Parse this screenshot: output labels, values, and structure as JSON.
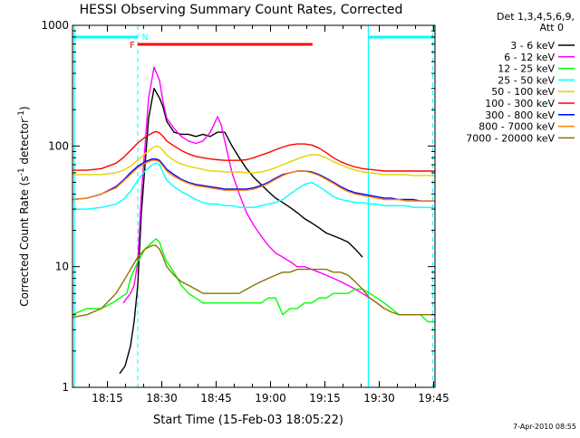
{
  "chart_data": {
    "type": "line",
    "title": "HESSI Observing Summary Count Rates, Corrected",
    "xlabel": "Start Time (15-Feb-03 18:05:22)",
    "ylabel_parts": [
      "Corrected Count Rate (s",
      "-1",
      " detector",
      "-1",
      ")"
    ],
    "x_unit": "minutes after 18:05:22",
    "x_range": [
      0,
      100
    ],
    "y_range": [
      1,
      1000
    ],
    "y_scale": "log",
    "x_tick_labels": [
      {
        "label": "18:15",
        "x": 9.63
      },
      {
        "label": "18:30",
        "x": 24.63
      },
      {
        "label": "18:45",
        "x": 39.63
      },
      {
        "label": "19:00",
        "x": 54.63
      },
      {
        "label": "19:15",
        "x": 69.63
      },
      {
        "label": "19:30",
        "x": 84.63
      },
      {
        "label": "19:45",
        "x": 99.63
      }
    ],
    "y_tick_labels": [
      {
        "label": "1",
        "y": 1
      },
      {
        "label": "10",
        "y": 10
      },
      {
        "label": "100",
        "y": 100
      },
      {
        "label": "1000",
        "y": 1000
      }
    ],
    "legend": {
      "placement": "top-right, outside plot",
      "header": [
        "Det 1,3,4,5,6,9,",
        "Att 0"
      ]
    },
    "series": [
      {
        "name": "3 - 6 keV",
        "color": "#000000",
        "x": [
          13,
          14.5,
          16,
          17,
          18,
          19,
          21,
          22.5,
          24,
          25,
          26,
          28,
          30,
          32,
          34,
          36,
          38,
          40,
          42,
          44,
          46,
          48,
          50,
          52,
          54,
          56,
          58,
          60,
          62,
          64,
          66,
          68,
          70,
          72,
          74,
          76,
          78,
          80
        ],
        "y": [
          1.3,
          1.5,
          2.2,
          3.5,
          7,
          28,
          170,
          300,
          250,
          210,
          160,
          130,
          125,
          125,
          120,
          125,
          120,
          130,
          130,
          100,
          80,
          65,
          55,
          48,
          42,
          37,
          34,
          31,
          28,
          25,
          23,
          21,
          19,
          18,
          17,
          16,
          14,
          12
        ]
      },
      {
        "name": "6 - 12 keV",
        "color": "#ff00ff",
        "x": [
          14,
          16,
          17,
          18,
          19,
          21,
          22.5,
          24,
          25,
          26,
          28,
          30,
          32,
          34,
          36,
          38,
          39,
          40,
          41,
          42,
          44,
          46,
          48,
          50,
          52,
          54,
          56,
          58,
          60,
          62,
          64,
          66,
          68,
          70,
          72,
          74,
          76,
          78,
          80,
          82,
          84,
          86
        ],
        "y": [
          5,
          6,
          7,
          11,
          40,
          250,
          450,
          350,
          230,
          170,
          140,
          120,
          110,
          105,
          110,
          130,
          150,
          175,
          150,
          110,
          60,
          40,
          28,
          22,
          18,
          15,
          13,
          12,
          11,
          10,
          10,
          9.5,
          9,
          8.5,
          8,
          7.5,
          7,
          6.5,
          6,
          5.5,
          5,
          4.5
        ]
      },
      {
        "name": "12 - 25 keV",
        "color": "#00ff00",
        "x": [
          0,
          4,
          8,
          11,
          13,
          15,
          16,
          18,
          20,
          22,
          23,
          24,
          25,
          26,
          28,
          30,
          32,
          34,
          36,
          38,
          40,
          42,
          44,
          46,
          48,
          50,
          52,
          54,
          56,
          58,
          60,
          62,
          64,
          66,
          68,
          70,
          72,
          74,
          76,
          78,
          80,
          82,
          84,
          86,
          88,
          90,
          92,
          94,
          96,
          98,
          100
        ],
        "y": [
          4,
          4.5,
          4.5,
          5,
          5.5,
          6,
          8,
          11,
          14,
          16,
          17,
          16,
          13,
          11,
          9,
          7,
          6,
          5.5,
          5,
          5,
          5,
          5,
          5,
          5,
          5,
          5,
          5,
          5.5,
          5.5,
          4,
          4.5,
          4.5,
          5,
          5,
          5.5,
          5.5,
          6,
          6,
          6,
          6.5,
          6.5,
          6,
          5.5,
          5,
          4.5,
          4,
          4,
          4,
          4,
          3.5,
          3.5
        ]
      },
      {
        "name": "25 - 50 keV",
        "color": "#00ffff",
        "x": [
          0,
          4,
          8,
          12,
          14,
          16,
          18,
          20,
          22,
          23,
          24,
          25,
          26,
          28,
          30,
          32,
          34,
          36,
          38,
          40,
          42,
          44,
          46,
          48,
          50,
          52,
          54,
          56,
          58,
          60,
          62,
          64,
          66,
          68,
          70,
          72,
          74,
          76,
          78,
          80,
          82,
          84,
          86,
          88,
          90,
          92,
          94,
          96,
          98,
          100
        ],
        "y": [
          30,
          30,
          31,
          33,
          36,
          42,
          52,
          62,
          70,
          72,
          70,
          60,
          52,
          46,
          42,
          39,
          36,
          34,
          33,
          33,
          32,
          32,
          31,
          31,
          31,
          32,
          33,
          34,
          36,
          40,
          44,
          48,
          50,
          46,
          42,
          38,
          36,
          35,
          34,
          34,
          33,
          33,
          32,
          32,
          32,
          32,
          31,
          31,
          31,
          31
        ]
      },
      {
        "name": "50 - 100 keV",
        "color": "#e6d200",
        "x": [
          0,
          4,
          8,
          12,
          14,
          16,
          18,
          20,
          22,
          23,
          24,
          25,
          26,
          28,
          30,
          32,
          34,
          36,
          38,
          40,
          42,
          44,
          46,
          48,
          50,
          52,
          54,
          56,
          58,
          60,
          62,
          64,
          66,
          68,
          70,
          72,
          74,
          76,
          78,
          80,
          82,
          84,
          86,
          88,
          90,
          92,
          94,
          96,
          98,
          100
        ],
        "y": [
          58,
          58,
          58,
          60,
          63,
          68,
          76,
          86,
          96,
          100,
          98,
          92,
          84,
          76,
          71,
          68,
          66,
          64,
          62,
          62,
          61,
          61,
          61,
          60,
          60,
          61,
          63,
          66,
          70,
          74,
          78,
          82,
          85,
          84,
          80,
          74,
          70,
          66,
          63,
          61,
          60,
          59,
          58,
          58,
          58,
          58,
          57,
          57,
          57,
          57
        ]
      },
      {
        "name": "100 - 300 keV",
        "color": "#ff0000",
        "x": [
          0,
          4,
          8,
          12,
          14,
          16,
          18,
          20,
          22,
          23,
          24,
          25,
          26,
          28,
          30,
          32,
          34,
          36,
          38,
          40,
          42,
          44,
          46,
          48,
          50,
          52,
          54,
          56,
          58,
          60,
          62,
          64,
          66,
          68,
          70,
          72,
          74,
          76,
          78,
          80,
          82,
          84,
          86,
          88,
          90,
          92,
          94,
          96,
          98,
          100
        ],
        "y": [
          63,
          63,
          65,
          72,
          80,
          92,
          106,
          118,
          128,
          132,
          128,
          120,
          110,
          100,
          92,
          86,
          82,
          80,
          78,
          77,
          76,
          76,
          76,
          77,
          80,
          84,
          88,
          93,
          98,
          102,
          104,
          104,
          102,
          96,
          88,
          80,
          74,
          70,
          67,
          65,
          64,
          63,
          62,
          62,
          62,
          62,
          62,
          62,
          62,
          62
        ]
      },
      {
        "name": "300 - 800 keV",
        "color": "#0000ff",
        "x": [
          0,
          4,
          8,
          12,
          14,
          16,
          18,
          20,
          22,
          23,
          24,
          25,
          26,
          28,
          30,
          32,
          34,
          36,
          38,
          40,
          42,
          44,
          46,
          48,
          50,
          52,
          54,
          56,
          58,
          60,
          62,
          64,
          66,
          68,
          70,
          72,
          74,
          76,
          78,
          80,
          82,
          84,
          86,
          88,
          90,
          92,
          94,
          96,
          98,
          100
        ],
        "y": [
          36,
          37,
          40,
          46,
          52,
          60,
          68,
          74,
          78,
          78,
          76,
          70,
          64,
          58,
          53,
          50,
          48,
          47,
          46,
          45,
          44,
          44,
          44,
          44,
          45,
          47,
          50,
          54,
          58,
          60,
          62,
          62,
          61,
          58,
          54,
          50,
          46,
          43,
          41,
          40,
          39,
          38,
          37,
          37,
          36,
          36,
          36,
          35,
          35,
          35
        ]
      },
      {
        "name": "800 - 7000 keV",
        "color": "#ff8000",
        "x": [
          0,
          4,
          8,
          12,
          14,
          16,
          18,
          20,
          22,
          23,
          24,
          25,
          26,
          28,
          30,
          32,
          34,
          36,
          38,
          40,
          42,
          44,
          46,
          48,
          50,
          52,
          54,
          56,
          58,
          60,
          62,
          64,
          66,
          68,
          70,
          72,
          74,
          76,
          78,
          80,
          82,
          84,
          86,
          88,
          90,
          92,
          94,
          96,
          98,
          100
        ],
        "y": [
          36,
          37,
          40,
          45,
          51,
          58,
          66,
          72,
          76,
          76,
          74,
          68,
          62,
          56,
          52,
          49,
          47,
          46,
          45,
          44,
          43,
          43,
          43,
          43,
          44,
          46,
          49,
          53,
          57,
          60,
          62,
          62,
          60,
          57,
          53,
          49,
          45,
          42,
          40,
          39,
          38,
          37,
          36,
          36,
          36,
          35,
          35,
          35,
          35,
          35
        ]
      },
      {
        "name": "7000 - 20000 keV",
        "color": "#8b7300",
        "x": [
          0,
          4,
          8,
          12,
          14,
          16,
          18,
          20,
          22,
          23,
          24,
          25,
          26,
          28,
          30,
          32,
          34,
          36,
          38,
          40,
          42,
          44,
          46,
          48,
          50,
          52,
          54,
          56,
          58,
          60,
          62,
          64,
          66,
          68,
          70,
          72,
          74,
          76,
          78,
          80,
          82,
          84,
          86,
          88,
          90,
          92,
          94,
          96,
          98,
          100
        ],
        "y": [
          3.8,
          4,
          4.5,
          6,
          7.5,
          9.5,
          12,
          14,
          15,
          15,
          14,
          12,
          10,
          8.5,
          7.5,
          7,
          6.5,
          6,
          6,
          6,
          6,
          6,
          6,
          6.5,
          7,
          7.5,
          8,
          8.5,
          9,
          9,
          9.5,
          9.5,
          9.5,
          9.5,
          9.5,
          9,
          9,
          8.5,
          7.5,
          6.5,
          5.5,
          5,
          4.5,
          4.2,
          4,
          4,
          4,
          4,
          4,
          4
        ]
      }
    ],
    "annotations": {
      "flags": [
        {
          "label": "F",
          "color": "#ff0000"
        },
        {
          "label": "N",
          "color": "#00ffff"
        }
      ],
      "flare_interval": {
        "x": [
          18.0,
          66.2
        ],
        "color": "#ff0000"
      },
      "night_intervals": [
        {
          "x": [
            0,
            18.0
          ],
          "color": "#00ffff"
        },
        {
          "x": [
            81.6,
            99.8
          ],
          "color": "#00ffff"
        }
      ],
      "solid_lines": [
        {
          "x": 0.5,
          "color": "#00ffff"
        },
        {
          "x": 81.6,
          "color": "#00ffff"
        }
      ],
      "dashed_lines": [
        {
          "x": 18.0,
          "color": "#00ffff"
        },
        {
          "x": 99.4,
          "color": "#00ffff"
        }
      ],
      "date_stamp": "7-Apr-2010 08:55"
    }
  }
}
